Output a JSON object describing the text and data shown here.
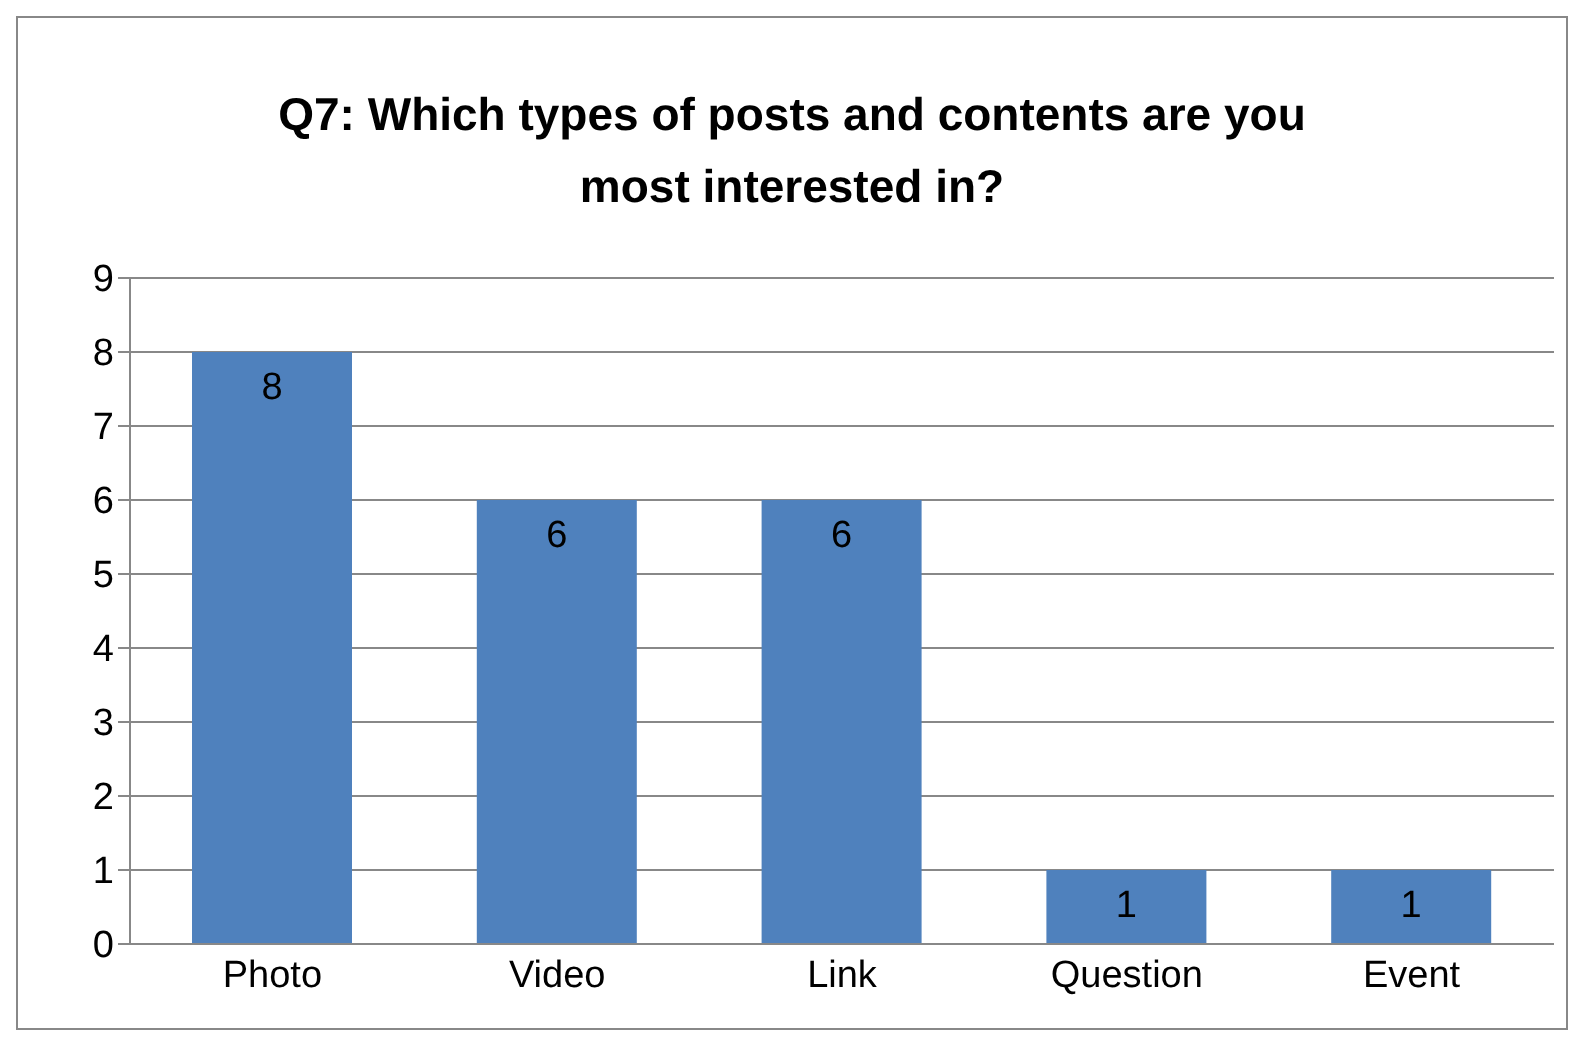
{
  "chart_data": {
    "type": "bar",
    "title": "Q7: Which types of posts and contents are you most interested in?",
    "categories": [
      "Photo",
      "Video",
      "Link",
      "Question",
      "Event"
    ],
    "values": [
      8,
      6,
      6,
      1,
      1
    ],
    "color": "#4f81bd",
    "ylim": [
      0,
      9
    ],
    "yticks": [
      0,
      1,
      2,
      3,
      4,
      5,
      6,
      7,
      8,
      9
    ],
    "grid": "y",
    "data_labels": true
  }
}
